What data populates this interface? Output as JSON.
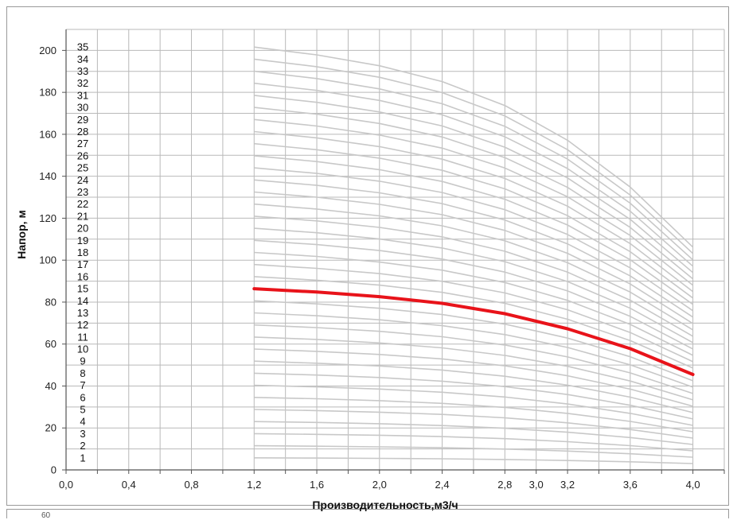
{
  "chart_data": {
    "type": "line",
    "xlabel": "Производительность,м3/ч",
    "ylabel": "Напор, м",
    "xlim": [
      0,
      4.2
    ],
    "ylim": [
      0,
      210
    ],
    "x_ticks": [
      "0,0",
      "0,4",
      "0,8",
      "1,2",
      "1,6",
      "2,0",
      "2,4",
      "2,8",
      "3,0",
      "3,2",
      "3,6",
      "4,0"
    ],
    "x_tick_values": [
      0.0,
      0.4,
      0.8,
      1.2,
      1.6,
      2.0,
      2.4,
      2.8,
      3.0,
      3.2,
      3.6,
      4.0
    ],
    "y_ticks": [
      "0",
      "20",
      "40",
      "60",
      "80",
      "100",
      "120",
      "140",
      "160",
      "180",
      "200"
    ],
    "y_tick_values": [
      0,
      20,
      40,
      60,
      80,
      100,
      120,
      140,
      160,
      180,
      200
    ],
    "grid": true,
    "x": [
      1.2,
      1.6,
      2.0,
      2.4,
      2.8,
      3.0,
      3.2,
      3.6,
      4.0
    ],
    "shape": [
      1.0,
      0.9815,
      0.9557,
      0.9184,
      0.8617,
      0.8211,
      0.7795,
      0.6689,
      0.5269
    ],
    "stage_count": 35,
    "stage_labels": [
      "1",
      "2",
      "3",
      "4",
      "5",
      "6",
      "7",
      "8",
      "9",
      "10",
      "11",
      "12",
      "13",
      "14",
      "15",
      "16",
      "17",
      "18",
      "19",
      "20",
      "21",
      "22",
      "23",
      "24",
      "25",
      "26",
      "27",
      "28",
      "29",
      "30",
      "31",
      "32",
      "33",
      "34",
      "35"
    ],
    "series": [
      {
        "label": "15",
        "highlight": true,
        "values": [
          86.4,
          84.8,
          82.6,
          79.4,
          74.5,
          70.9,
          67.3,
          57.8,
          45.5
        ]
      }
    ],
    "colors": {
      "curve": "#c8c8c8",
      "highlight": "#e8131a",
      "grid": "#b9b9b9"
    }
  }
}
